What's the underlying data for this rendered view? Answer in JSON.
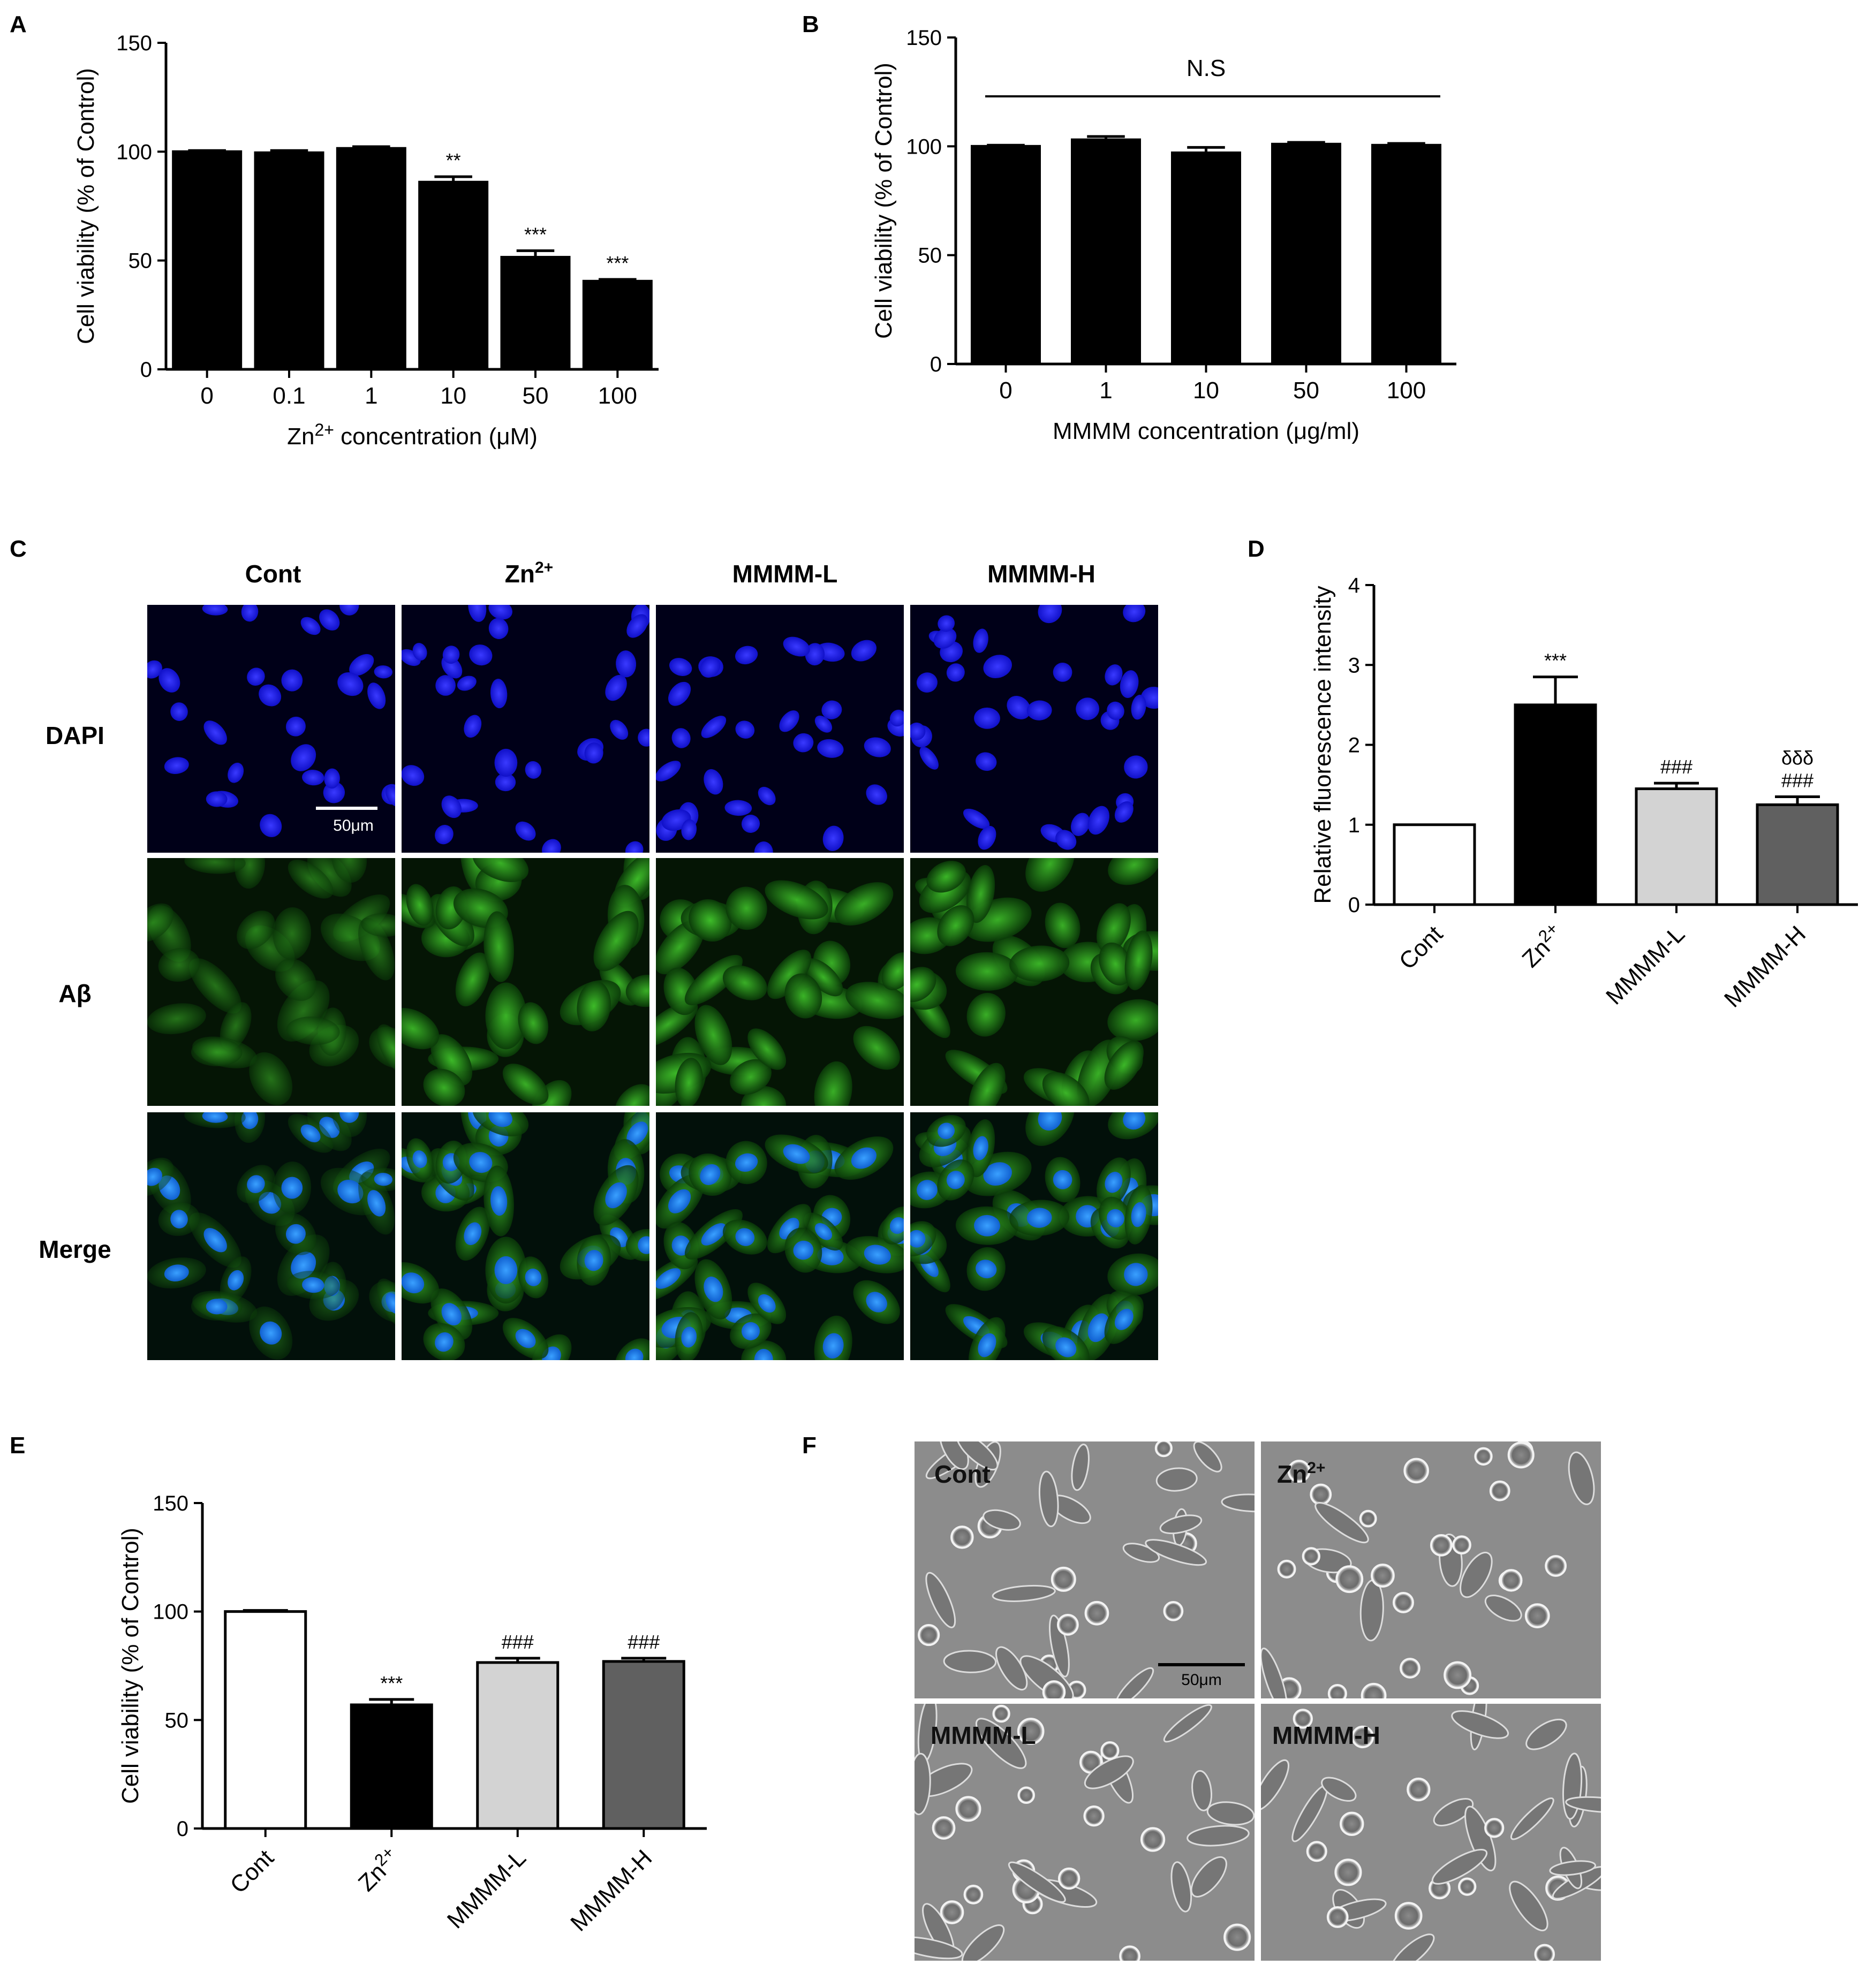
{
  "panels": {
    "A": "A",
    "B": "B",
    "C": "C",
    "D": "D",
    "E": "E",
    "F": "F"
  },
  "chart_data": [
    {
      "panel": "A",
      "type": "bar",
      "ylabel": "Cell viability (% of Control)",
      "xlabel_parts": [
        "Zn",
        "2+",
        " concentration (μM)"
      ],
      "categories": [
        "0",
        "0.1",
        "1",
        "10",
        "50",
        "100"
      ],
      "values": [
        100,
        99.5,
        101.5,
        86,
        51.5,
        40.5
      ],
      "errors": [
        0.5,
        1,
        0.8,
        2.5,
        3,
        0.8
      ],
      "bar_colors": [
        "#000000",
        "#000000",
        "#000000",
        "#000000",
        "#000000",
        "#000000"
      ],
      "significance": [
        "",
        "",
        "",
        "**",
        "***",
        "***"
      ],
      "ylim": [
        0,
        150
      ],
      "yticks": [
        "0",
        "50",
        "100",
        "150"
      ]
    },
    {
      "panel": "B",
      "type": "bar",
      "ylabel": "Cell viability (% of Control)",
      "xlabel": "MMMM concentration (μg/ml)",
      "categories": [
        "0",
        "1",
        "10",
        "50",
        "100"
      ],
      "values": [
        100,
        103,
        97,
        101,
        100.5
      ],
      "errors": [
        0.5,
        1.5,
        2.5,
        0.8,
        0.8
      ],
      "bar_colors": [
        "#000000",
        "#000000",
        "#000000",
        "#000000",
        "#000000"
      ],
      "annotation": "N.S",
      "ylim": [
        0,
        150
      ],
      "yticks": [
        "0",
        "50",
        "100",
        "150"
      ]
    },
    {
      "panel": "D",
      "type": "bar",
      "ylabel": "Relative fluorescence intensity",
      "categories": [
        "Cont",
        "Zn2+",
        "MMMM-L",
        "MMMM-H"
      ],
      "values": [
        1.0,
        2.5,
        1.45,
        1.25
      ],
      "errors": [
        0,
        0.35,
        0.07,
        0.1
      ],
      "bar_colors": [
        "#ffffff",
        "#000000",
        "#d3d3d3",
        "#606060"
      ],
      "significance_top": [
        "",
        "",
        "",
        "δδδ"
      ],
      "significance": [
        "",
        "***",
        "###",
        "###"
      ],
      "ylim": [
        0,
        4
      ],
      "yticks": [
        "0",
        "1",
        "2",
        "3",
        "4"
      ]
    },
    {
      "panel": "E",
      "type": "bar",
      "ylabel": "Cell viability (% of Control)",
      "categories": [
        "Cont",
        "Zn2+",
        "MMMM-L",
        "MMMM-H"
      ],
      "values": [
        100,
        57,
        76.5,
        77
      ],
      "errors": [
        0.5,
        2.5,
        2,
        1.5
      ],
      "bar_colors": [
        "#ffffff",
        "#000000",
        "#d3d3d3",
        "#606060"
      ],
      "significance": [
        "",
        "***",
        "###",
        "###"
      ],
      "ylim": [
        0,
        150
      ],
      "yticks": [
        "0",
        "50",
        "100",
        "150"
      ]
    }
  ],
  "microscopy_C": {
    "columns": [
      "Cont",
      "Zn2+",
      "MMMM-L",
      "MMMM-H"
    ],
    "rows": [
      "DAPI",
      "Aβ",
      "Merge"
    ],
    "scale_bar": "50μm"
  },
  "microscopy_F": {
    "labels": [
      "Cont",
      "Zn2+",
      "MMMM-L",
      "MMMM-H"
    ],
    "scale_bar": "50μm"
  }
}
